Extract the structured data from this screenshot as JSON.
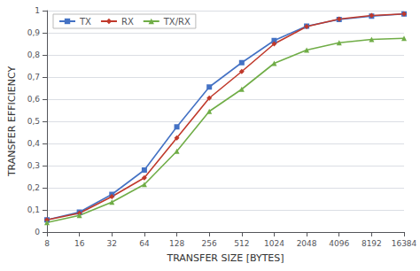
{
  "chart_data": {
    "type": "line",
    "x_label": "TRANSFER SIZE [BYTES]",
    "y_label": "TRANSFER EFFICIENCY",
    "x": [
      8,
      16,
      32,
      64,
      128,
      256,
      512,
      1024,
      2048,
      4096,
      8192,
      16384
    ],
    "series": [
      {
        "name": "TX",
        "color": "#4472c4",
        "marker": "square",
        "values": [
          0.055,
          0.09,
          0.17,
          0.28,
          0.475,
          0.655,
          0.765,
          0.865,
          0.93,
          0.96,
          0.975,
          0.985
        ]
      },
      {
        "name": "RX",
        "color": "#c0392b",
        "marker": "diamond",
        "values": [
          0.055,
          0.085,
          0.16,
          0.245,
          0.425,
          0.605,
          0.725,
          0.85,
          0.928,
          0.962,
          0.978,
          0.985
        ]
      },
      {
        "name": "TX/RX",
        "color": "#70ad47",
        "marker": "triangle",
        "values": [
          0.043,
          0.075,
          0.135,
          0.215,
          0.365,
          0.545,
          0.645,
          0.762,
          0.822,
          0.855,
          0.87,
          0.875
        ]
      }
    ],
    "log": "x",
    "xlim": [
      8,
      16384
    ],
    "xticks": [
      8,
      16,
      32,
      64,
      128,
      256,
      512,
      1024,
      2048,
      4096,
      8192,
      16384
    ],
    "ylim": [
      0,
      1.0
    ],
    "yticks": [
      0,
      {
        "value": 0.1,
        "label": "0,1"
      },
      {
        "value": 0.2,
        "label": "0,2"
      },
      {
        "value": 0.3,
        "label": "0,3"
      },
      {
        "value": 0.4,
        "label": "0,4"
      },
      {
        "value": 0.5,
        "label": "0,5"
      },
      {
        "value": 0.6,
        "label": "0,6"
      },
      {
        "value": 0.7,
        "label": "0,7"
      },
      {
        "value": 0.8,
        "label": "0,8"
      },
      {
        "value": 0.9,
        "label": "0,9"
      },
      1
    ],
    "grid": true,
    "legend": "upper left"
  }
}
